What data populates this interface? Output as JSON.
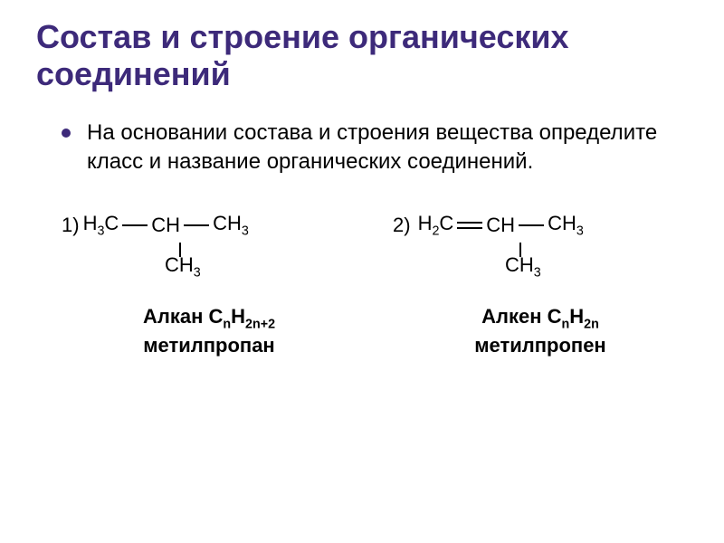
{
  "title_color": "#3d2a7a",
  "bullet_color": "#3d2a7a",
  "text_color": "#000000",
  "title": "Состав и строение органических соединений",
  "body": "На основании состава и строения вещества определите класс и название органических соединений.",
  "ex1": {
    "num": "1)",
    "c1": "H₃C",
    "c2": "CH",
    "c3": "CH₃",
    "branch": "CH₃",
    "class": "Алкан CₙH₂ₙ₊₂",
    "name": "метилпропан"
  },
  "ex2": {
    "num": "2)",
    "c1": "H₂C",
    "c2": "CH",
    "c3": "CH₃",
    "branch": "CH₃",
    "class": "Алкен CₙH₂ₙ",
    "name": "метилпропен"
  }
}
